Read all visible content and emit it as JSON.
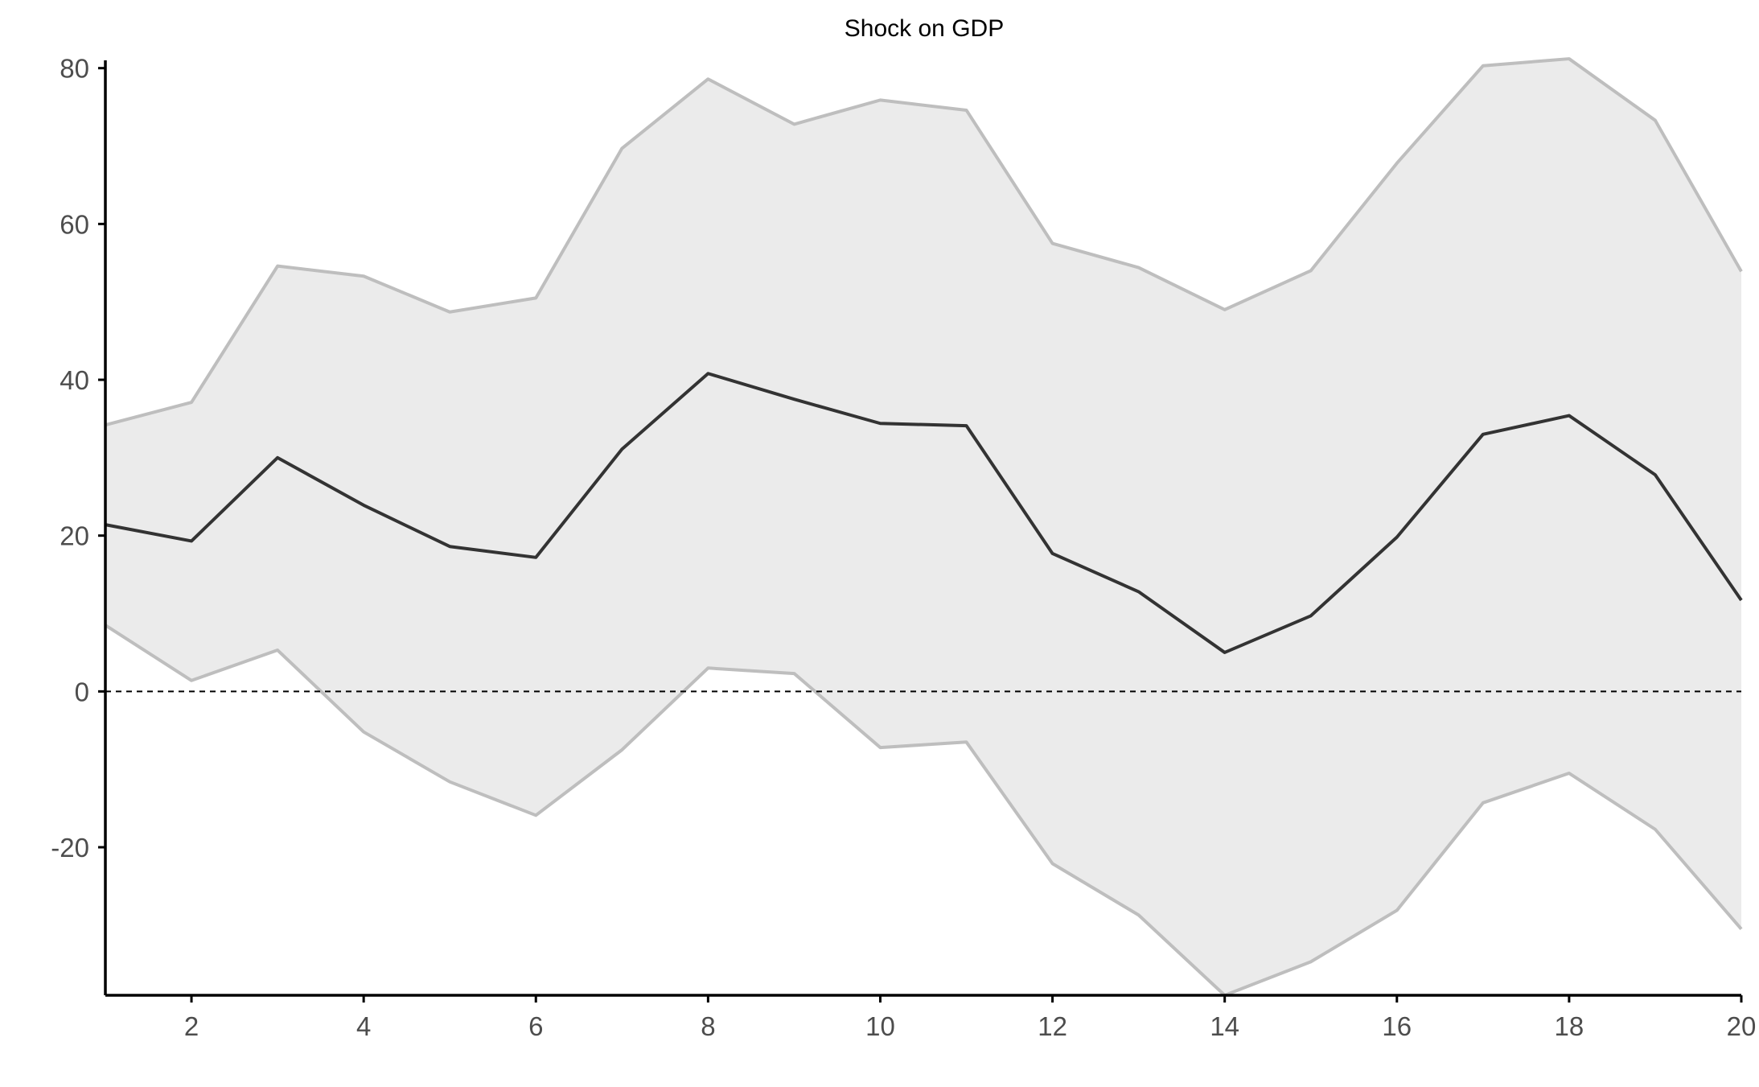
{
  "chart_data": {
    "type": "area",
    "title": "Shock on GDP",
    "xlabel": "",
    "ylabel": "",
    "x": [
      1,
      2,
      3,
      4,
      5,
      6,
      7,
      8,
      9,
      10,
      11,
      12,
      13,
      14,
      15,
      16,
      17,
      18,
      19,
      20
    ],
    "xlim": [
      1,
      20
    ],
    "ylim": [
      -39,
      81
    ],
    "xticks": [
      2,
      4,
      6,
      8,
      10,
      12,
      14,
      16,
      18,
      20
    ],
    "yticks": [
      -20,
      0,
      20,
      40,
      60,
      80
    ],
    "grid": false,
    "legend": "none",
    "reference_line": {
      "y": 0,
      "style": "dashed"
    },
    "series": [
      {
        "role": "upper",
        "values": [
          34.2,
          37.1,
          54.6,
          53.3,
          48.7,
          50.5,
          69.7,
          78.6,
          72.8,
          75.9,
          74.6,
          57.5,
          54.4,
          49.0,
          54.0,
          67.8,
          80.3,
          81.2,
          73.3,
          53.9
        ]
      },
      {
        "role": "estimate",
        "values": [
          21.4,
          19.3,
          30.0,
          23.9,
          18.6,
          17.2,
          31.1,
          40.8,
          37.5,
          34.4,
          34.1,
          17.7,
          12.8,
          5.0,
          9.7,
          19.8,
          33.0,
          35.4,
          27.8,
          11.7
        ]
      },
      {
        "role": "lower",
        "values": [
          8.5,
          1.4,
          5.3,
          -5.2,
          -11.6,
          -15.9,
          -7.5,
          3.0,
          2.3,
          -7.2,
          -6.5,
          -22.1,
          -28.7,
          -39.0,
          -34.7,
          -28.1,
          -14.3,
          -10.5,
          -17.7,
          -30.5
        ]
      }
    ],
    "colors": {
      "band_fill": "#ebebeb",
      "band_edge": "#bebebe",
      "estimate_line": "#333333",
      "axis": "#000000",
      "zero_line": "#000000"
    }
  }
}
